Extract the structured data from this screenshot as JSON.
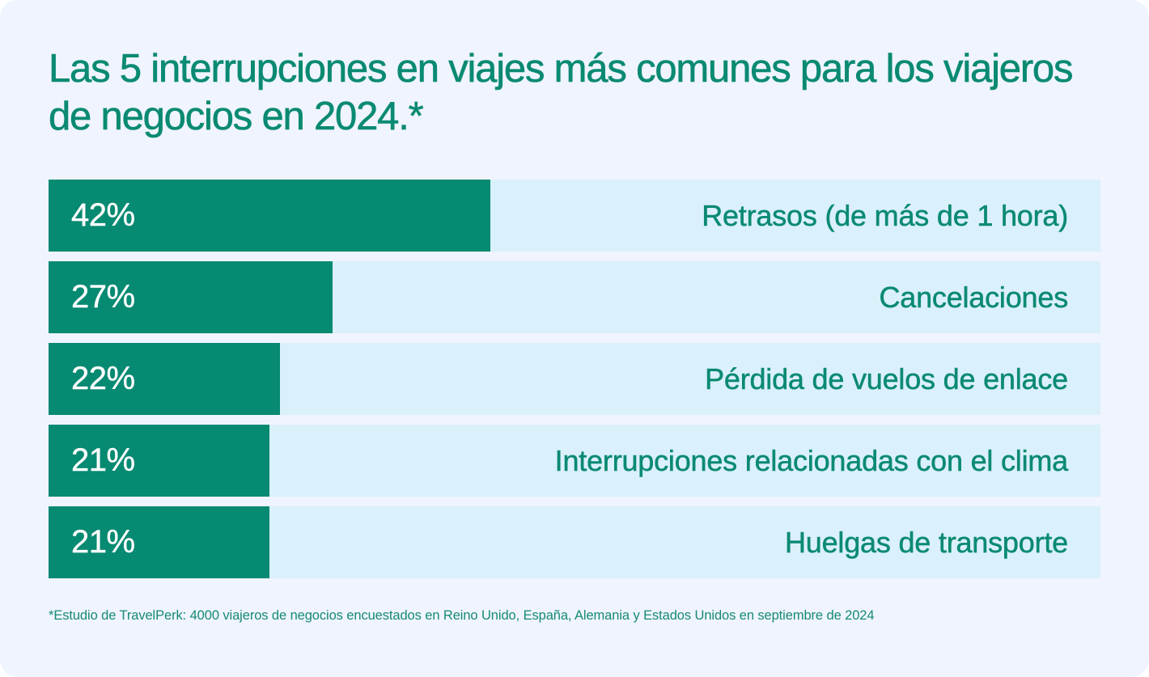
{
  "chart_data": {
    "type": "bar",
    "orientation": "horizontal",
    "title": "Las 5 interrupciones en viajes más comunes para los viajeros de negocios en 2024.*",
    "categories": [
      "Retrasos (de más de 1 hora)",
      "Cancelaciones",
      "Pérdida de vuelos de enlace",
      "Interrupciones relacionadas con el clima",
      "Huelgas de transporte"
    ],
    "values": [
      42,
      27,
      22,
      21,
      21
    ],
    "value_labels": [
      "42%",
      "27%",
      "22%",
      "21%",
      "21%"
    ],
    "unit": "%",
    "xlim": [
      0,
      100
    ],
    "xlabel": "",
    "ylabel": "",
    "grid": false,
    "legend": "none",
    "colors": {
      "bar": "#078a72",
      "track": "#daf0fa",
      "text": "#0a8a72",
      "background": "#eff4fe"
    },
    "footnote": "*Estudio de TravelPerk: 4000 viajeros de negocios encuestados en Reino Unido, España, Alemania y Estados Unidos en septiembre de 2024"
  }
}
